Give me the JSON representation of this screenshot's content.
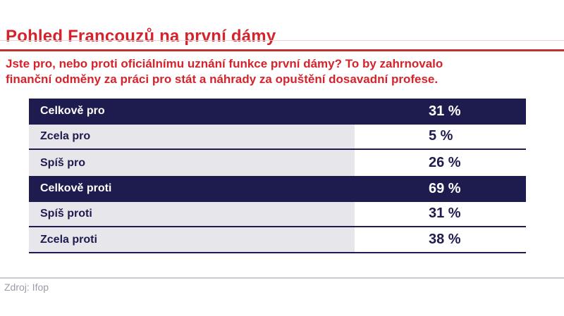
{
  "page": {
    "title": "Pohled Francouzů na první dámy",
    "subtitle_line1": "Jste pro, nebo proti oficiálnímu uznání funkce první dámy? To by zahrnovalo",
    "subtitle_line2": "finanční odměny za práci pro stát a náhrady za opuštění dosavadní profese.",
    "source": "Zdroj: Ifop"
  },
  "colors": {
    "title_red": "#d6232b",
    "rule_dark_red": "#c03136",
    "rule_light_pink": "#f2cfd0",
    "row_navy": "#1e1b4e",
    "row_gray": "#e6e6eb",
    "footer_rule_gray": "#c9c9d4",
    "source_text_gray": "#9b9ba9"
  },
  "table": {
    "rows": [
      {
        "label": "Celkově pro",
        "value": "31 %",
        "type": "total"
      },
      {
        "label": "Zcela pro",
        "value": "5 %",
        "type": "detail"
      },
      {
        "label": "Spíš pro",
        "value": "26 %",
        "type": "detail"
      },
      {
        "label": "Celkově proti",
        "value": "69 %",
        "type": "total"
      },
      {
        "label": "Spíš proti",
        "value": "31 %",
        "type": "detail"
      },
      {
        "label": "Zcela proti",
        "value": "38 %",
        "type": "detail"
      }
    ]
  },
  "chart_data": {
    "type": "table",
    "title": "Pohled Francouzů na první dámy",
    "subtitle": "Jste pro, nebo proti oficiálnímu uznání funkce první dámy? To by zahrnovalo finanční odměny za práci pro stát a náhrady za opuštění dosavadní profese.",
    "categories": [
      "Celkově pro",
      "Zcela pro",
      "Spíš pro",
      "Celkově proti",
      "Spíš proti",
      "Zcela proti"
    ],
    "values": [
      31,
      5,
      26,
      69,
      31,
      38
    ],
    "value_unit": "%",
    "highlighted_rows": [
      "Celkově pro",
      "Celkově proti"
    ],
    "source": "Zdroj: Ifop"
  }
}
